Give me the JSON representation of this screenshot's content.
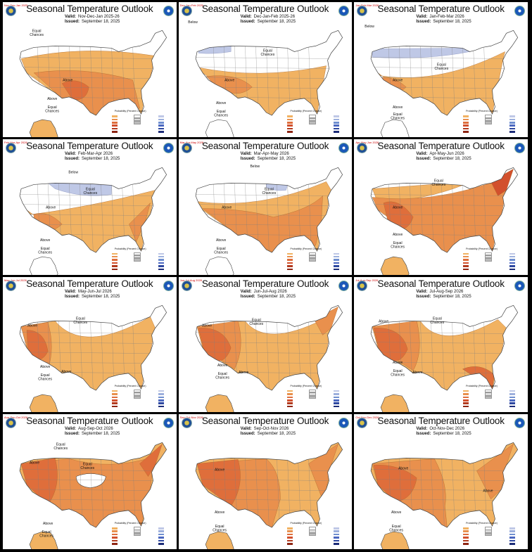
{
  "title": "Seasonal Temperature Outlook",
  "meta_labels": {
    "valid": "Valid:",
    "issued": "Issued:"
  },
  "issued_date": "September 18, 2025",
  "legend_title": "Probability (Percent Chance)",
  "colors": {
    "above_light": "#F1B262",
    "above_mid": "#E9904D",
    "above_strong": "#DF6E3B",
    "above_deep": "#D2502D",
    "below_light": "#BFC8E6",
    "equal_chances": "#FFFFFF",
    "state_lines": "#7f7f7f"
  },
  "panels": [
    {
      "valid": "Nov-Dec-Jan 2025-26",
      "tiny": "Nov-Dec-Jan 2025",
      "labels": [
        "Equal Chances",
        "Above",
        "Above",
        "Equal Chances"
      ]
    },
    {
      "valid": "Dec-Jan-Feb 2025-26",
      "tiny": "Dec-Jan-Feb 2025",
      "labels": [
        "Below",
        "Equal Chances",
        "Above",
        "Above",
        "Equal Chances"
      ]
    },
    {
      "valid": "Jan-Feb-Mar 2026",
      "tiny": "Jan-Feb-Mar 2026",
      "labels": [
        "Below",
        "Equal Chances",
        "Above",
        "Above",
        "Equal Chances"
      ]
    },
    {
      "valid": "Feb-Mar-Apr 2026",
      "tiny": "Feb-Mar-Apr 2026",
      "labels": [
        "Below",
        "Equal Chances",
        "Above",
        "Above",
        "Equal Chances"
      ]
    },
    {
      "valid": "Mar-Apr-May 2026",
      "tiny": "Mar-Apr-May 2026",
      "labels": [
        "Below",
        "Equal Chances",
        "Above",
        "Above",
        "Equal Chances"
      ]
    },
    {
      "valid": "Apr-May-Jun 2026",
      "tiny": "Apr-May-Jun 2026",
      "labels": [
        "Equal Chances",
        "Above",
        "Above",
        "Equal Chances"
      ]
    },
    {
      "valid": "May-Jun-Jul 2026",
      "tiny": "May-Jun-Jul 2026",
      "labels": [
        "Equal Chances",
        "Above",
        "Above",
        "Equal Chances",
        "Above"
      ]
    },
    {
      "valid": "Jun-Jul-Aug 2026",
      "tiny": "Jun-Jul-Aug 2026",
      "labels": [
        "Equal Chances",
        "Above",
        "Above",
        "Equal Chances",
        "Above"
      ]
    },
    {
      "valid": "Jul-Aug-Sep 2026",
      "tiny": "Jul-Aug-Sep 2026",
      "labels": [
        "Equal Chances",
        "Above",
        "Above",
        "Equal Chances",
        "Above"
      ]
    },
    {
      "valid": "Aug-Sep-Oct 2026",
      "tiny": "Aug-Sep-Oct 2026",
      "labels": [
        "Equal Chances",
        "Equal Chances",
        "Above",
        "Above",
        "Equal Chances"
      ]
    },
    {
      "valid": "Sep-Oct-Nov 2026",
      "tiny": "Sep-Oct-Nov 2026",
      "labels": [
        "Above",
        "Above",
        "Equal Chances"
      ]
    },
    {
      "valid": "Oct-Nov-Dec 2026",
      "tiny": "Oct-Nov-Dec 2026",
      "labels": [
        "Above",
        "Above",
        "Above",
        "Equal Chances"
      ]
    }
  ]
}
